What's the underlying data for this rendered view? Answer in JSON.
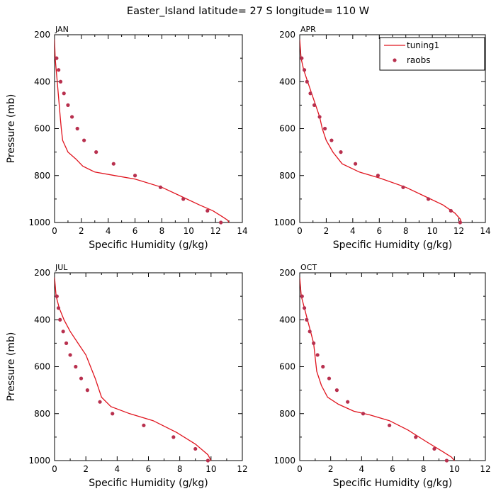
{
  "title": "Easter_Island  latitude= 27 S longitude= 110 W",
  "legend": {
    "line_label": "tuning1",
    "dots_label": "raobs",
    "position": "top-right of APR panel"
  },
  "colors": {
    "model": "#e0141e",
    "obs": "#b8304e"
  },
  "chart_data": [
    {
      "type": "line",
      "panel": "JAN",
      "xlabel": "Specific Humidity (g/kg)",
      "ylabel": "Pressure (mb)",
      "xlim": [
        0,
        14
      ],
      "ylim": [
        1000,
        200
      ],
      "y_inverted": true,
      "xticks": [
        0,
        2,
        4,
        6,
        8,
        10,
        12,
        14
      ],
      "yticks": [
        200,
        400,
        600,
        800,
        1000
      ],
      "series": [
        {
          "name": "tuning1",
          "style": "line",
          "x": [
            0.0,
            0.05,
            0.12,
            0.2,
            0.35,
            0.42,
            0.5,
            0.6,
            1.0,
            1.6,
            2.1,
            3.0,
            4.5,
            6.0,
            8.0,
            9.5,
            10.8,
            11.8,
            12.5,
            12.9,
            13.0,
            13.0
          ],
          "y": [
            220,
            300,
            350,
            400,
            500,
            550,
            600,
            650,
            700,
            730,
            760,
            785,
            800,
            815,
            850,
            890,
            925,
            950,
            975,
            990,
            1000,
            1020
          ]
        },
        {
          "name": "raobs",
          "style": "dots",
          "x": [
            0.15,
            0.3,
            0.45,
            0.7,
            1.0,
            1.3,
            1.7,
            2.2,
            3.1,
            4.4,
            6.0,
            7.9,
            9.6,
            11.4,
            12.4
          ],
          "y": [
            300,
            350,
            400,
            450,
            500,
            550,
            600,
            650,
            700,
            750,
            800,
            850,
            900,
            950,
            1000
          ]
        }
      ]
    },
    {
      "type": "line",
      "panel": "APR",
      "xlabel": "Specific Humidity (g/kg)",
      "ylabel": "",
      "xlim": [
        0,
        14
      ],
      "ylim": [
        1000,
        200
      ],
      "y_inverted": true,
      "xticks": [
        0,
        2,
        4,
        6,
        8,
        10,
        12,
        14
      ],
      "yticks": [
        200,
        400,
        600,
        800,
        1000
      ],
      "series": [
        {
          "name": "tuning1",
          "style": "line",
          "x": [
            0.0,
            0.1,
            0.3,
            0.6,
            0.9,
            1.2,
            1.5,
            1.7,
            2.0,
            2.5,
            3.2,
            4.5,
            6.0,
            8.0,
            9.5,
            10.8,
            11.7,
            12.1,
            12.2,
            12.2
          ],
          "y": [
            220,
            300,
            350,
            400,
            450,
            500,
            550,
            600,
            650,
            700,
            750,
            785,
            810,
            850,
            890,
            925,
            960,
            985,
            1000,
            1020
          ]
        },
        {
          "name": "raobs",
          "style": "dots",
          "x": [
            0.15,
            0.35,
            0.55,
            0.8,
            1.1,
            1.5,
            1.9,
            2.4,
            3.1,
            4.2,
            5.9,
            7.8,
            9.7,
            11.4,
            12.1
          ],
          "y": [
            300,
            350,
            400,
            450,
            500,
            550,
            600,
            650,
            700,
            750,
            800,
            850,
            900,
            950,
            1000
          ]
        }
      ]
    },
    {
      "type": "line",
      "panel": "JUL",
      "xlabel": "Specific Humidity (g/kg)",
      "ylabel": "Pressure (mb)",
      "xlim": [
        0,
        12
      ],
      "ylim": [
        1000,
        200
      ],
      "y_inverted": true,
      "xticks": [
        0,
        2,
        4,
        6,
        8,
        10,
        12
      ],
      "yticks": [
        200,
        400,
        600,
        800,
        1000
      ],
      "series": [
        {
          "name": "tuning1",
          "style": "line",
          "x": [
            0.0,
            0.1,
            0.3,
            0.6,
            1.0,
            1.5,
            2.0,
            2.6,
            3.0,
            3.6,
            4.8,
            6.3,
            7.8,
            9.0,
            9.8,
            10.0,
            10.0
          ],
          "y": [
            220,
            300,
            350,
            400,
            450,
            500,
            550,
            650,
            730,
            770,
            800,
            830,
            880,
            930,
            975,
            1000,
            1020
          ]
        },
        {
          "name": "raobs",
          "style": "dots",
          "x": [
            0.15,
            0.25,
            0.35,
            0.55,
            0.75,
            1.0,
            1.35,
            1.7,
            2.1,
            2.9,
            3.7,
            5.7,
            7.6,
            9.0,
            9.8
          ],
          "y": [
            300,
            350,
            400,
            450,
            500,
            550,
            600,
            650,
            700,
            750,
            800,
            850,
            900,
            950,
            1000
          ]
        }
      ]
    },
    {
      "type": "line",
      "panel": "OCT",
      "xlabel": "Specific Humidity (g/kg)",
      "ylabel": "",
      "xlim": [
        0,
        12
      ],
      "ylim": [
        1000,
        200
      ],
      "y_inverted": true,
      "xticks": [
        0,
        2,
        4,
        6,
        8,
        10,
        12
      ],
      "yticks": [
        200,
        400,
        600,
        800,
        1000
      ],
      "series": [
        {
          "name": "tuning1",
          "style": "line",
          "x": [
            0.0,
            0.1,
            0.3,
            0.5,
            0.7,
            0.9,
            1.0,
            1.1,
            1.4,
            1.8,
            2.5,
            3.5,
            4.5,
            5.8,
            7.0,
            8.2,
            9.2,
            9.8,
            10.0,
            10.0
          ],
          "y": [
            220,
            300,
            350,
            400,
            450,
            500,
            560,
            620,
            680,
            730,
            760,
            790,
            805,
            830,
            870,
            920,
            960,
            985,
            1000,
            1020
          ]
        },
        {
          "name": "raobs",
          "style": "dots",
          "x": [
            0.15,
            0.3,
            0.45,
            0.65,
            0.9,
            1.15,
            1.5,
            1.9,
            2.4,
            3.1,
            4.1,
            5.8,
            7.5,
            8.7,
            9.5
          ],
          "y": [
            300,
            350,
            400,
            450,
            500,
            550,
            600,
            650,
            700,
            750,
            800,
            850,
            900,
            950,
            1000
          ]
        }
      ]
    }
  ]
}
